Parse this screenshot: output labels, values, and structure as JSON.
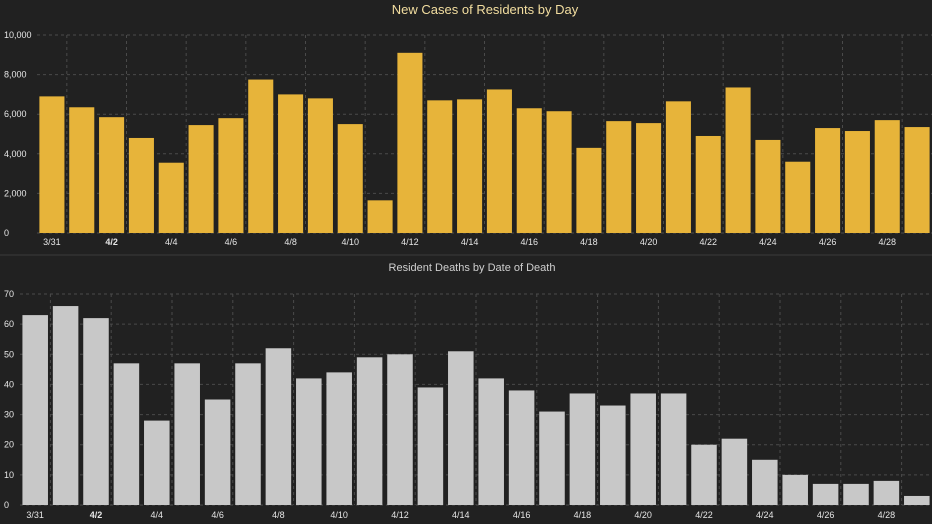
{
  "chart_data": [
    {
      "type": "bar",
      "title": "New Cases of Residents by Day",
      "categories": [
        "3/31",
        "4/1",
        "4/2",
        "4/3",
        "4/4",
        "4/5",
        "4/6",
        "4/7",
        "4/8",
        "4/9",
        "4/10",
        "4/11",
        "4/12",
        "4/13",
        "4/14",
        "4/15",
        "4/16",
        "4/17",
        "4/18",
        "4/19",
        "4/20",
        "4/21",
        "4/22",
        "4/23",
        "4/24",
        "4/25",
        "4/26",
        "4/27",
        "4/28",
        "4/29"
      ],
      "x_tick_labels": [
        "3/31",
        "4/2",
        "4/4",
        "4/6",
        "4/8",
        "4/10",
        "4/12",
        "4/14",
        "4/16",
        "4/18",
        "4/20",
        "4/22",
        "4/24",
        "4/26",
        "4/28"
      ],
      "values": [
        6900,
        6350,
        5850,
        4800,
        3550,
        5450,
        5800,
        7750,
        7000,
        6800,
        5500,
        1650,
        9100,
        6700,
        6750,
        7250,
        6300,
        6150,
        4300,
        5650,
        5550,
        6650,
        4900,
        7350,
        4700,
        3600,
        5300,
        5150,
        5700,
        5350
      ],
      "ylim": [
        0,
        10000
      ],
      "y_ticks": [
        "0",
        "2,000",
        "4,000",
        "6,000",
        "8,000",
        "10,000"
      ],
      "grid": true,
      "colors": {
        "bar": "#e7b43a",
        "background": "#212121"
      }
    },
    {
      "type": "bar",
      "title": "Resident Deaths by Date of Death",
      "categories": [
        "3/31",
        "4/1",
        "4/2",
        "4/3",
        "4/4",
        "4/5",
        "4/6",
        "4/7",
        "4/8",
        "4/9",
        "4/10",
        "4/11",
        "4/12",
        "4/13",
        "4/14",
        "4/15",
        "4/16",
        "4/17",
        "4/18",
        "4/19",
        "4/20",
        "4/21",
        "4/22",
        "4/23",
        "4/24",
        "4/25",
        "4/26",
        "4/27",
        "4/28",
        "4/29"
      ],
      "x_tick_labels": [
        "3/31",
        "4/2",
        "4/4",
        "4/6",
        "4/8",
        "4/10",
        "4/12",
        "4/14",
        "4/16",
        "4/18",
        "4/20",
        "4/22",
        "4/24",
        "4/26",
        "4/28"
      ],
      "values": [
        63,
        66,
        62,
        47,
        28,
        47,
        35,
        47,
        52,
        42,
        44,
        49,
        50,
        39,
        51,
        42,
        38,
        31,
        37,
        33,
        37,
        37,
        20,
        22,
        15,
        10,
        7,
        7,
        8,
        3
      ],
      "ylim": [
        0,
        70
      ],
      "y_ticks": [
        "0",
        "10",
        "20",
        "30",
        "40",
        "50",
        "60",
        "70"
      ],
      "grid": true,
      "colors": {
        "bar": "#c8c8c8",
        "background": "#212121"
      }
    }
  ]
}
